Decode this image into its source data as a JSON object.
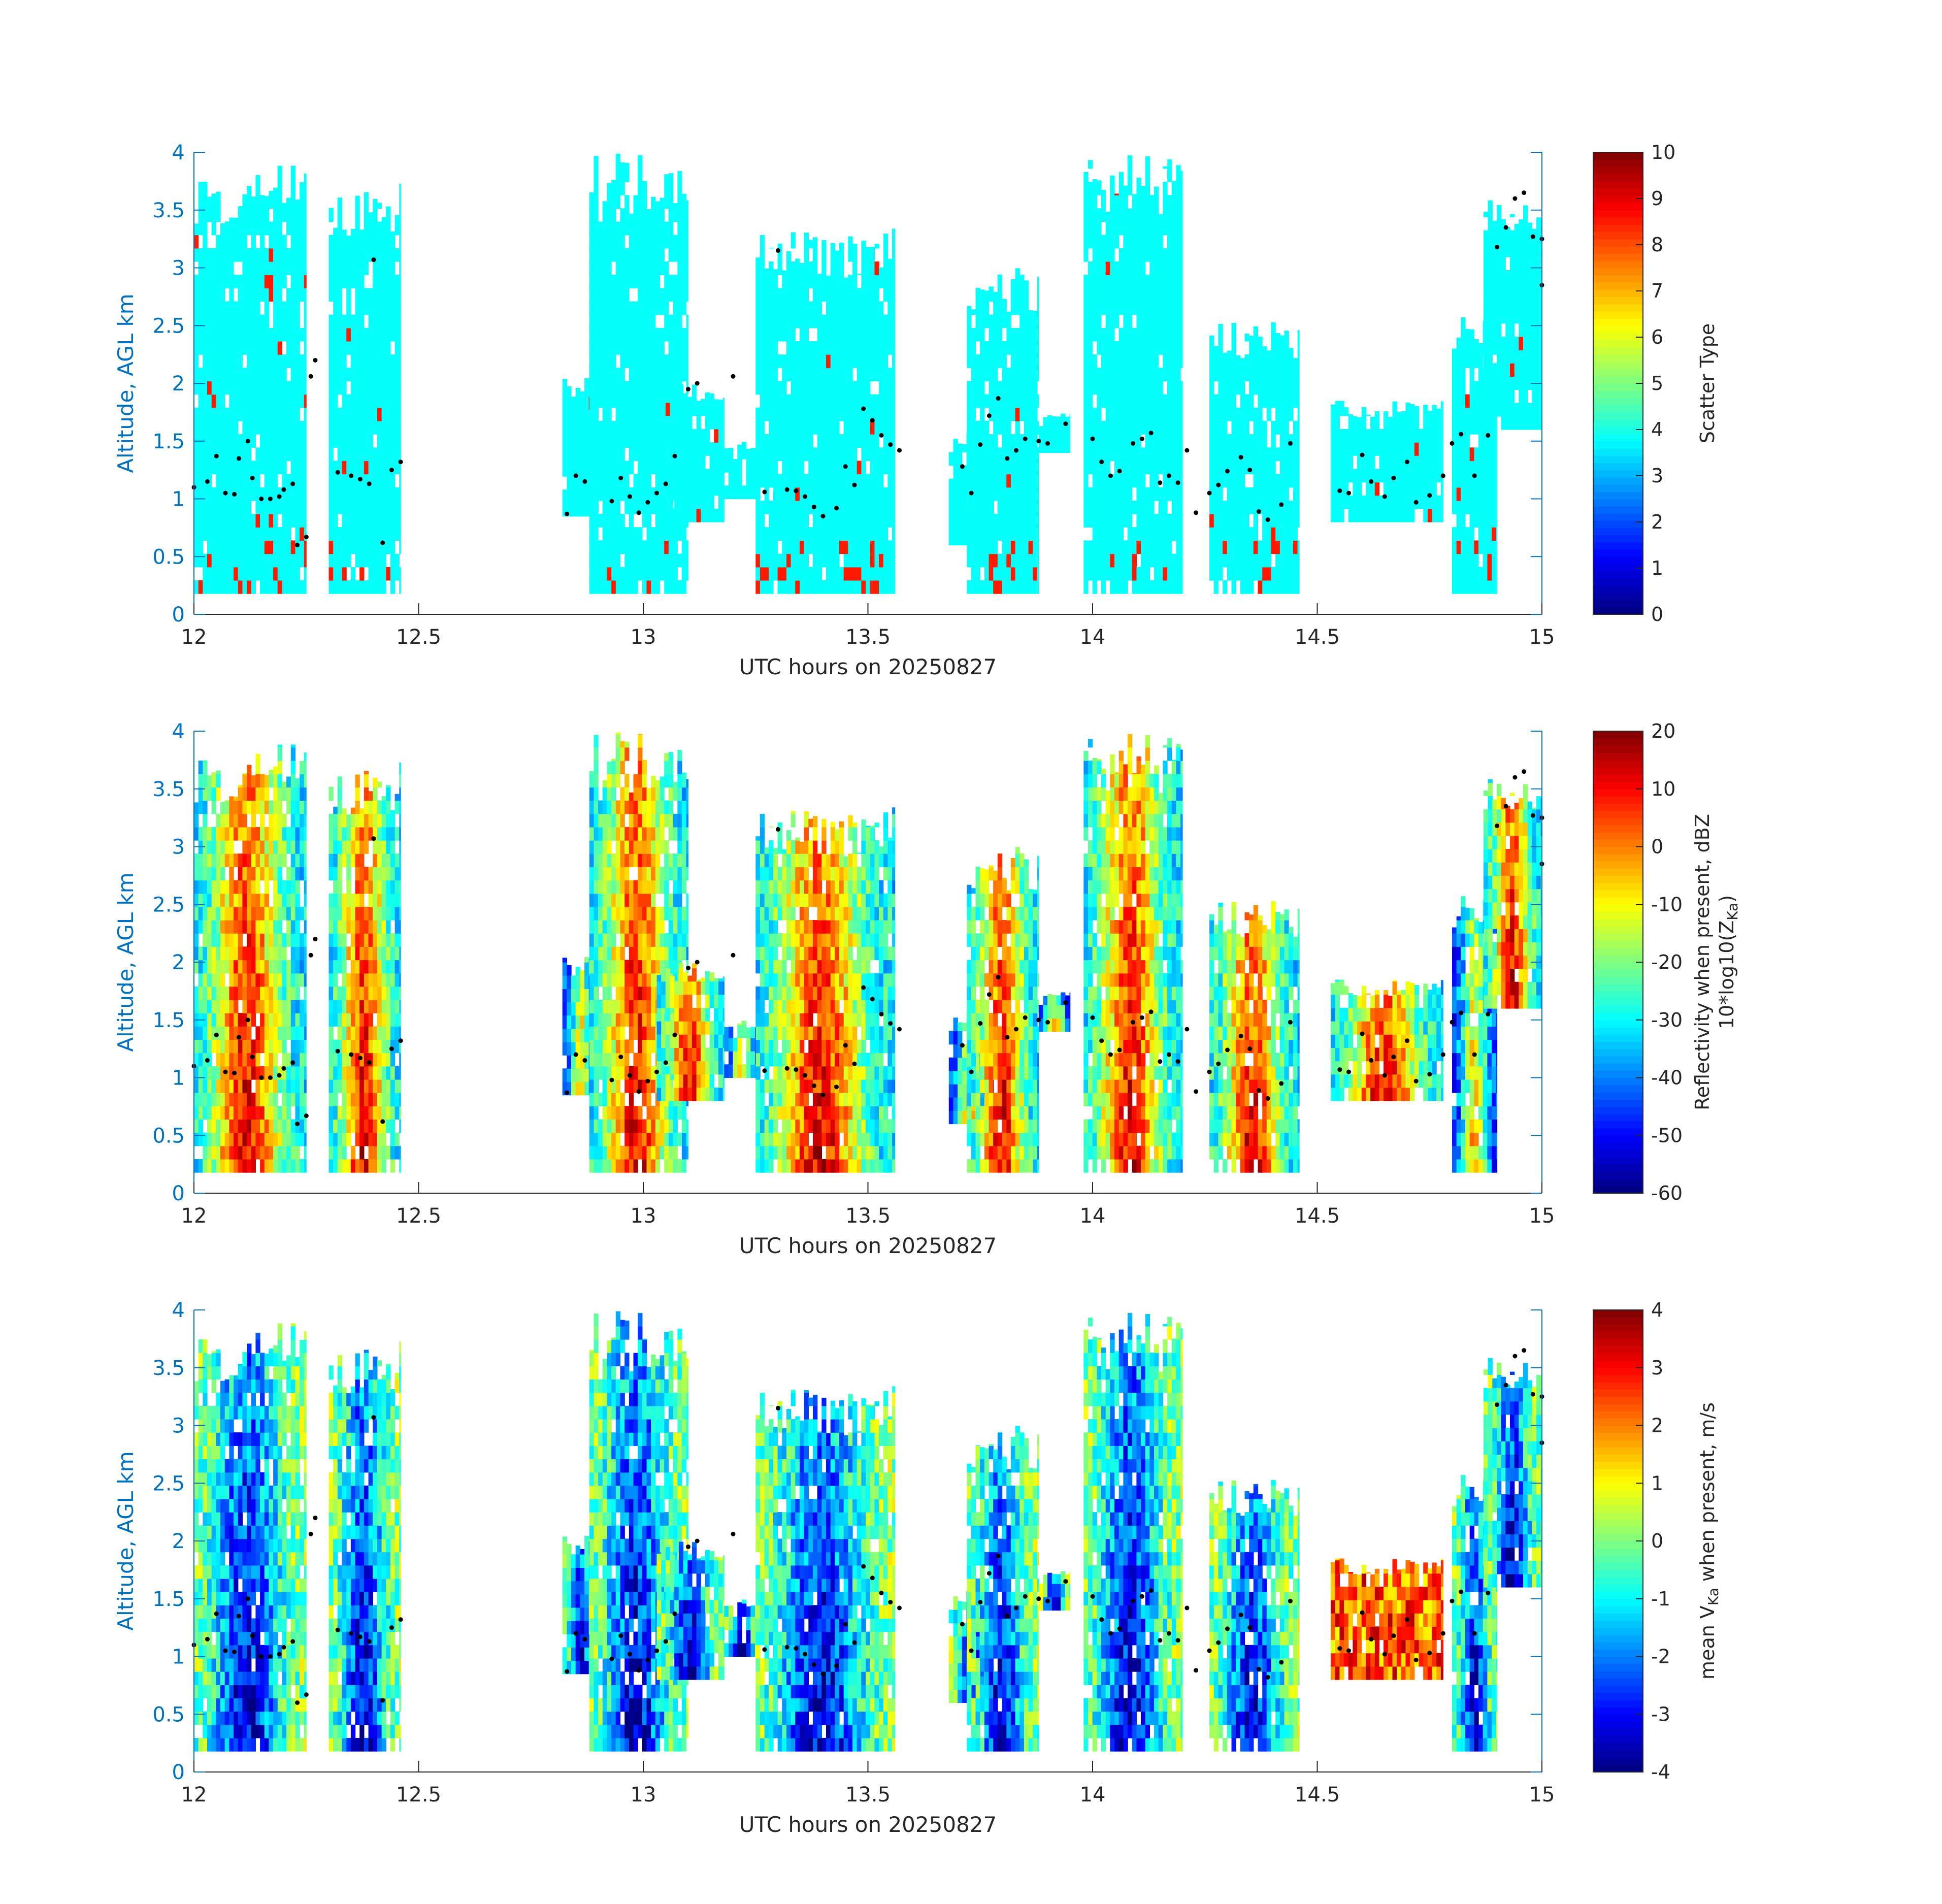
{
  "chart_data": [
    {
      "type": "heatmap",
      "name": "scatter-type",
      "xlabel": "UTC hours on 20250827",
      "ylabel": "Altitude, AGL km",
      "xlim": [
        12,
        15
      ],
      "ylim": [
        0,
        4
      ],
      "xticks": [
        "12",
        "12.5",
        "13",
        "13.5",
        "14",
        "14.5",
        "15"
      ],
      "yticks": [
        "0",
        "0.5",
        "1",
        "1.5",
        "2",
        "2.5",
        "3",
        "3.5",
        "4"
      ],
      "colorbar": {
        "label": "Scatter Type",
        "label_sub": "",
        "range": [
          0,
          10
        ],
        "ticks": [
          "0",
          "1",
          "2",
          "3",
          "4",
          "5",
          "6",
          "7",
          "8",
          "9",
          "10"
        ]
      },
      "colormap": "jet",
      "dominant_value": 3.8,
      "secondary_value": 8.5
    },
    {
      "type": "heatmap",
      "name": "reflectivity",
      "xlabel": "UTC hours on 20250827",
      "ylabel": "Altitude, AGL km",
      "xlim": [
        12,
        15
      ],
      "ylim": [
        0,
        4
      ],
      "xticks": [
        "12",
        "12.5",
        "13",
        "13.5",
        "14",
        "14.5",
        "15"
      ],
      "yticks": [
        "0",
        "0.5",
        "1",
        "1.5",
        "2",
        "2.5",
        "3",
        "3.5",
        "4"
      ],
      "colorbar": {
        "label": "Reflectivity when present, dBZ",
        "label_sub": "10*log10(Z",
        "label_sub_subscript": "Ka",
        "label_sub_suffix": ")",
        "range": [
          -60,
          20
        ],
        "ticks": [
          "-60",
          "-50",
          "-40",
          "-30",
          "-20",
          "-10",
          "0",
          "10",
          "20"
        ]
      },
      "colormap": "jet"
    },
    {
      "type": "heatmap",
      "name": "doppler-velocity",
      "xlabel": "UTC hours on 20250827",
      "ylabel": "Altitude, AGL km",
      "xlim": [
        12,
        15
      ],
      "ylim": [
        0,
        4
      ],
      "xticks": [
        "12",
        "12.5",
        "13",
        "13.5",
        "14",
        "14.5",
        "15"
      ],
      "yticks": [
        "0",
        "0.5",
        "1",
        "1.5",
        "2",
        "2.5",
        "3",
        "3.5",
        "4"
      ],
      "colorbar": {
        "label_prefix": "mean V",
        "label_subscript": "Ka",
        "label_suffix": " when present, m/s",
        "range": [
          -4,
          4
        ],
        "ticks": [
          "-4",
          "-3",
          "-2",
          "-1",
          "0",
          "1",
          "2",
          "3",
          "4"
        ]
      },
      "colormap": "jet"
    }
  ],
  "cloud_columns": [
    {
      "t0": 12.0,
      "t1": 12.25,
      "bottom": 0.18,
      "top": 3.9
    },
    {
      "t0": 12.3,
      "t1": 12.46,
      "bottom": 0.18,
      "top": 3.75
    },
    {
      "t0": 12.82,
      "t1": 12.9,
      "bottom": 0.85,
      "top": 2.1
    },
    {
      "t0": 12.88,
      "t1": 13.1,
      "bottom": 0.18,
      "top": 4.0
    },
    {
      "t0": 13.03,
      "t1": 13.18,
      "bottom": 0.8,
      "top": 2.0
    },
    {
      "t0": 13.18,
      "t1": 13.26,
      "bottom": 1.0,
      "top": 1.5
    },
    {
      "t0": 13.25,
      "t1": 13.56,
      "bottom": 0.18,
      "top": 3.35
    },
    {
      "t0": 13.68,
      "t1": 13.78,
      "bottom": 0.6,
      "top": 1.6
    },
    {
      "t0": 13.72,
      "t1": 13.88,
      "bottom": 0.18,
      "top": 3.0
    },
    {
      "t0": 13.88,
      "t1": 13.95,
      "bottom": 1.4,
      "top": 1.75
    },
    {
      "t0": 13.98,
      "t1": 14.2,
      "bottom": 0.18,
      "top": 4.0
    },
    {
      "t0": 14.26,
      "t1": 14.46,
      "bottom": 0.18,
      "top": 2.55
    },
    {
      "t0": 14.53,
      "t1": 14.78,
      "bottom": 0.8,
      "top": 1.85
    },
    {
      "t0": 14.8,
      "t1": 14.9,
      "bottom": 0.18,
      "top": 2.6
    },
    {
      "t0": 14.87,
      "t1": 15.0,
      "bottom": 1.6,
      "top": 3.6
    }
  ],
  "tracer_points": [
    [
      12.0,
      1.1
    ],
    [
      12.03,
      1.15
    ],
    [
      12.05,
      1.37
    ],
    [
      12.07,
      1.05
    ],
    [
      12.09,
      1.04
    ],
    [
      12.1,
      1.35
    ],
    [
      12.12,
      1.5
    ],
    [
      12.13,
      1.18
    ],
    [
      12.15,
      1.0
    ],
    [
      12.17,
      1.0
    ],
    [
      12.19,
      1.02
    ],
    [
      12.2,
      1.08
    ],
    [
      12.22,
      1.13
    ],
    [
      12.23,
      0.6
    ],
    [
      12.25,
      0.67
    ],
    [
      12.26,
      2.06
    ],
    [
      12.27,
      2.2
    ],
    [
      12.32,
      1.23
    ],
    [
      12.35,
      1.2
    ],
    [
      12.37,
      1.17
    ],
    [
      12.39,
      1.13
    ],
    [
      12.4,
      3.07
    ],
    [
      12.42,
      0.62
    ],
    [
      12.44,
      1.25
    ],
    [
      12.46,
      1.32
    ],
    [
      12.83,
      0.87
    ],
    [
      12.85,
      1.2
    ],
    [
      12.87,
      1.15
    ],
    [
      12.93,
      0.98
    ],
    [
      12.95,
      1.18
    ],
    [
      12.97,
      1.02
    ],
    [
      12.99,
      0.88
    ],
    [
      13.01,
      0.97
    ],
    [
      13.03,
      1.05
    ],
    [
      13.05,
      1.13
    ],
    [
      13.07,
      1.37
    ],
    [
      13.1,
      1.95
    ],
    [
      13.12,
      2.0
    ],
    [
      13.2,
      2.06
    ],
    [
      13.27,
      1.06
    ],
    [
      13.3,
      3.15
    ],
    [
      13.32,
      1.08
    ],
    [
      13.34,
      1.07
    ],
    [
      13.36,
      1.02
    ],
    [
      13.38,
      0.93
    ],
    [
      13.4,
      0.85
    ],
    [
      13.43,
      0.92
    ],
    [
      13.45,
      1.28
    ],
    [
      13.47,
      1.12
    ],
    [
      13.49,
      1.78
    ],
    [
      13.51,
      1.68
    ],
    [
      13.53,
      1.55
    ],
    [
      13.55,
      1.47
    ],
    [
      13.57,
      1.42
    ],
    [
      13.71,
      1.28
    ],
    [
      13.73,
      1.05
    ],
    [
      13.75,
      1.47
    ],
    [
      13.77,
      1.72
    ],
    [
      13.79,
      1.87
    ],
    [
      13.81,
      1.35
    ],
    [
      13.83,
      1.42
    ],
    [
      13.85,
      1.52
    ],
    [
      13.88,
      1.5
    ],
    [
      13.9,
      1.48
    ],
    [
      13.94,
      1.65
    ],
    [
      14.0,
      1.52
    ],
    [
      14.02,
      1.32
    ],
    [
      14.04,
      1.2
    ],
    [
      14.06,
      1.24
    ],
    [
      14.09,
      1.48
    ],
    [
      14.11,
      1.52
    ],
    [
      14.13,
      1.57
    ],
    [
      14.15,
      1.14
    ],
    [
      14.17,
      1.2
    ],
    [
      14.19,
      1.14
    ],
    [
      14.21,
      1.42
    ],
    [
      14.23,
      0.88
    ],
    [
      14.26,
      1.05
    ],
    [
      14.28,
      1.12
    ],
    [
      14.3,
      1.24
    ],
    [
      14.33,
      1.36
    ],
    [
      14.35,
      1.25
    ],
    [
      14.37,
      0.89
    ],
    [
      14.39,
      0.82
    ],
    [
      14.42,
      0.95
    ],
    [
      14.44,
      1.48
    ],
    [
      14.55,
      1.07
    ],
    [
      14.57,
      1.05
    ],
    [
      14.6,
      1.38
    ],
    [
      14.62,
      1.15
    ],
    [
      14.65,
      1.02
    ],
    [
      14.67,
      1.18
    ],
    [
      14.7,
      1.32
    ],
    [
      14.72,
      0.97
    ],
    [
      14.75,
      1.03
    ],
    [
      14.78,
      1.2
    ],
    [
      14.8,
      1.48
    ],
    [
      14.82,
      1.56
    ],
    [
      14.85,
      1.2
    ],
    [
      14.88,
      1.55
    ],
    [
      14.9,
      3.18
    ],
    [
      14.92,
      3.35
    ],
    [
      14.94,
      3.6
    ],
    [
      14.96,
      3.65
    ],
    [
      14.98,
      3.27
    ],
    [
      15.0,
      3.25
    ],
    [
      15.0,
      2.85
    ]
  ]
}
